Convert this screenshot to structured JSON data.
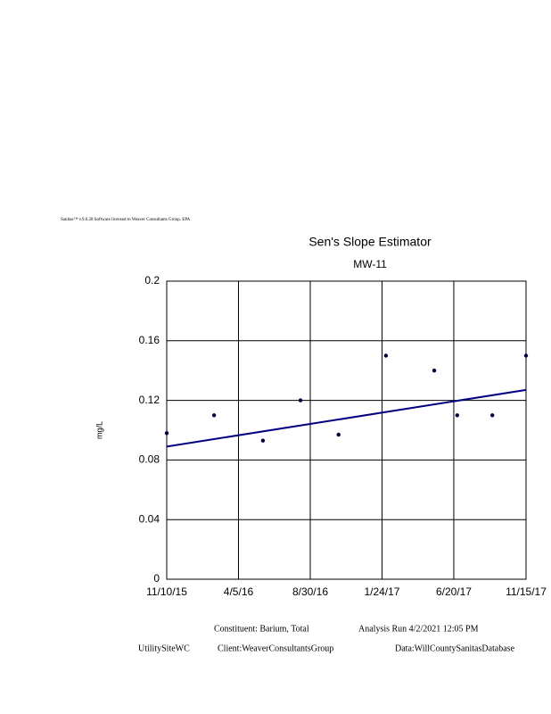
{
  "chart_data": {
    "type": "scatter",
    "header": "Sanitas™ v.9.6.28 Software licensed to Weaver Consultants Group. EPA",
    "title": "Sen's Slope Estimator",
    "subtitle": "MW-11",
    "y_label": "mg/L",
    "x": [
      "11/10/15",
      "2/15/16",
      "5/25/16",
      "8/10/16",
      "10/27/16",
      "2/1/17",
      "5/11/17",
      "6/27/17",
      "9/7/17",
      "11/15/17"
    ],
    "values": [
      0.098,
      0.11,
      0.093,
      0.12,
      0.097,
      0.15,
      0.14,
      0.11,
      0.11,
      0.15
    ],
    "color": "#000040",
    "trend_line": {
      "x": [
        "11/10/15",
        "11/15/17"
      ],
      "values": [
        0.089,
        0.127
      ],
      "color": "#000080"
    },
    "xlim": [
      "11/10/15",
      "11/15/17"
    ],
    "xticks": [
      "11/10/15",
      "4/5/16",
      "8/30/16",
      "1/24/17",
      "6/20/17",
      "11/15/17"
    ],
    "ylim": [
      0,
      0.2
    ],
    "yticks": [
      0,
      0.04,
      0.08,
      0.12,
      0.16,
      0.2
    ],
    "grid": true,
    "footer": {
      "constituent": "Constituent: Barium, Total",
      "run": "Analysis Run 4/2/2021 12:05 PM",
      "site": "UtilitySiteWC",
      "client": "Client:WeaverConsultantsGroup",
      "database": "Data:WillCountySanitasDatabase"
    }
  }
}
